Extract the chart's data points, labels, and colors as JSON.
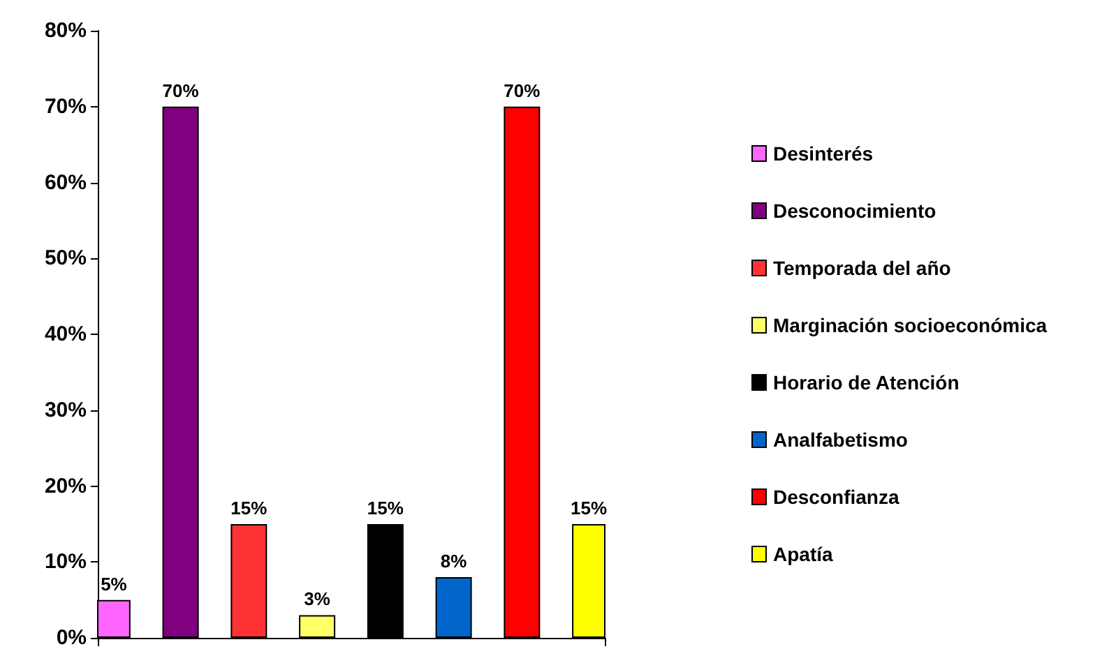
{
  "chart_data": {
    "type": "bar",
    "categories": [
      null
    ],
    "series": [
      {
        "name": "Desinterés",
        "color": "#ff66ff",
        "values": [
          5
        ],
        "value_labels": [
          "5%"
        ]
      },
      {
        "name": "Desconocimiento",
        "color": "#800080",
        "values": [
          70
        ],
        "value_labels": [
          "70%"
        ]
      },
      {
        "name": "Temporada del año",
        "color": "#ff3333",
        "values": [
          15
        ],
        "value_labels": [
          "15%"
        ]
      },
      {
        "name": "Marginación socioeconómica",
        "color": "#ffff66",
        "values": [
          3
        ],
        "value_labels": [
          "3%"
        ]
      },
      {
        "name": "Horario de Atención",
        "color": "#000000",
        "values": [
          15
        ],
        "value_labels": [
          "15%"
        ]
      },
      {
        "name": "Analfabetismo",
        "color": "#0066cc",
        "values": [
          8
        ],
        "value_labels": [
          "8%"
        ]
      },
      {
        "name": "Desconfianza",
        "color": "#ff0000",
        "values": [
          70
        ],
        "value_labels": [
          "70%"
        ]
      },
      {
        "name": "Apatía",
        "color": "#ffff00",
        "values": [
          15
        ],
        "value_labels": [
          "15%"
        ]
      }
    ],
    "ylim": [
      0,
      80
    ],
    "yticks": [
      {
        "value": 0,
        "label": "0%"
      },
      {
        "value": 10,
        "label": "10%"
      },
      {
        "value": 20,
        "label": "20%"
      },
      {
        "value": 30,
        "label": "30%"
      },
      {
        "value": 40,
        "label": "40%"
      },
      {
        "value": 50,
        "label": "50%"
      },
      {
        "value": 60,
        "label": "60%"
      },
      {
        "value": 70,
        "label": "70%"
      },
      {
        "value": 80,
        "label": "80%"
      }
    ],
    "legend": "right",
    "grid": false
  }
}
